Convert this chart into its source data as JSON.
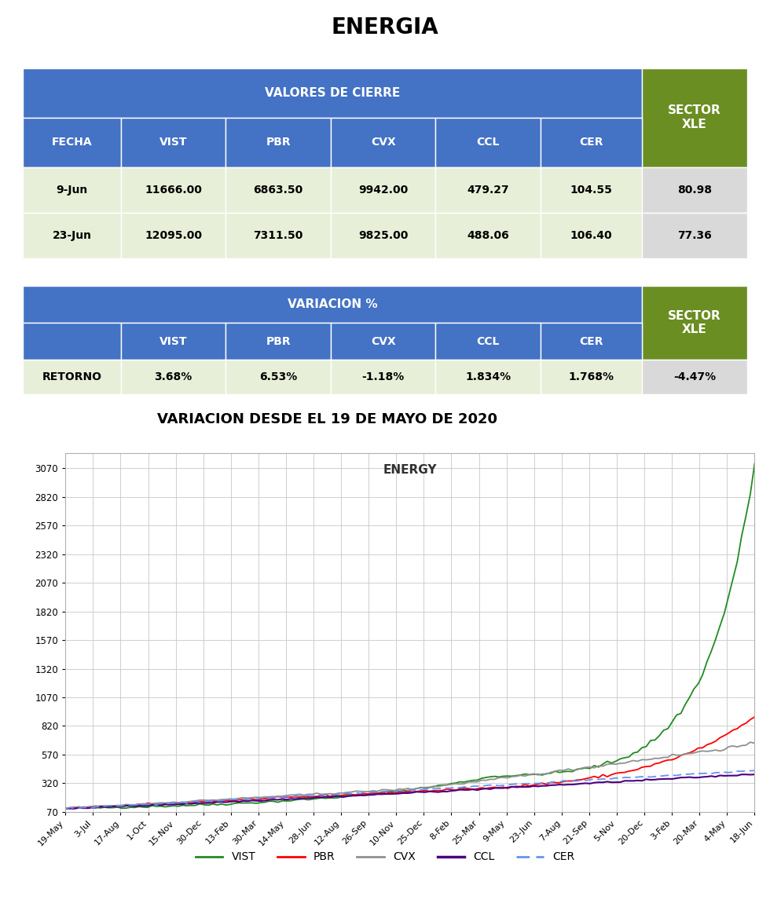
{
  "title": "ENERGIA",
  "table1_header_main": "VALORES DE CIERRE",
  "table1_header_sector": "SECTOR\nXLE",
  "table1_cols": [
    "FECHA",
    "VIST",
    "PBR",
    "CVX",
    "CCL",
    "CER"
  ],
  "table1_rows": [
    [
      "9-Jun",
      "11666.00",
      "6863.50",
      "9942.00",
      "479.27",
      "104.55",
      "80.98"
    ],
    [
      "23-Jun",
      "12095.00",
      "7311.50",
      "9825.00",
      "488.06",
      "106.40",
      "77.36"
    ]
  ],
  "table2_header_main": "VARIACION %",
  "table2_header_sector": "SECTOR\nXLE",
  "table2_cols": [
    "",
    "VIST",
    "PBR",
    "CVX",
    "CCL",
    "CER"
  ],
  "table2_rows": [
    [
      "RETORNO",
      "3.68%",
      "6.53%",
      "-1.18%",
      "1.834%",
      "1.768%",
      "-4.47%"
    ]
  ],
  "chart_title": "VARIACION DESDE EL 19 DE MAYO DE 2020",
  "chart_inner_title": "ENERGY",
  "header_blue": "#4472C4",
  "header_green": "#6B8E23",
  "row_light_green": "#E8EFD8",
  "row_light_gray": "#D9D9D9",
  "yticks": [
    70,
    320,
    570,
    820,
    1070,
    1320,
    1570,
    1820,
    2070,
    2320,
    2570,
    2820,
    3070
  ],
  "xtick_labels": [
    "19-May",
    "3-Jul",
    "17-Aug",
    "1-Oct",
    "15-Nov",
    "30-Dec",
    "13-Feb",
    "30-Mar",
    "14-May",
    "28-Jun",
    "12-Aug",
    "26-Sep",
    "10-Nov",
    "25-Dec",
    "8-Feb",
    "25-Mar",
    "9-May",
    "23-Jun",
    "7-Aug",
    "21-Sep",
    "5-Nov",
    "20-Dec",
    "3-Feb",
    "20-Mar",
    "4-May",
    "18-Jun"
  ],
  "line_colors": {
    "VIST": "#228B22",
    "PBR": "#FF0000",
    "CVX": "#909090",
    "CCL": "#4B0082",
    "CER": "#6495ED"
  }
}
